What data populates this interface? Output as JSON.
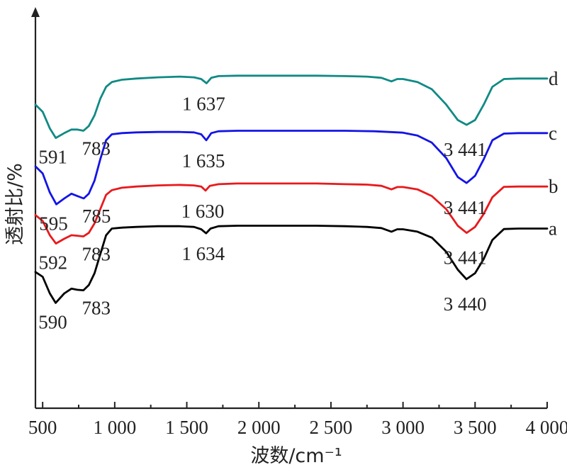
{
  "chart_data": {
    "type": "line",
    "xlabel": "波数/cm⁻¹",
    "ylabel": "透射比/%",
    "xlim": [
      450,
      4000
    ],
    "x_ticks": [
      500,
      1000,
      1500,
      2000,
      2500,
      3000,
      3500,
      4000
    ],
    "x_tick_labels": [
      "500",
      "1 000",
      "1 500",
      "2 000",
      "2 500",
      "3 000",
      "3 500",
      "4 000"
    ],
    "grid": false,
    "colors": {
      "a": "#000000",
      "b": "#e8191c",
      "c": "#1414e6",
      "d": "#108a84"
    },
    "series": [
      {
        "name": "a",
        "x": [
          450,
          500,
          550,
          590,
          650,
          700,
          740,
          783,
          820,
          860,
          900,
          940,
          980,
          1050,
          1150,
          1300,
          1450,
          1550,
          1600,
          1634,
          1665,
          1720,
          1850,
          2000,
          2200,
          2400,
          2600,
          2750,
          2850,
          2920,
          2960,
          3000,
          3100,
          3200,
          3300,
          3380,
          3440,
          3500,
          3560,
          3620,
          3700,
          3800,
          3900,
          4000
        ],
        "y": [
          70.5,
          68.5,
          61.5,
          57.5,
          61.5,
          63.5,
          63.0,
          62.8,
          65.0,
          70.0,
          78.0,
          86.0,
          88.8,
          89.2,
          89.5,
          89.8,
          89.8,
          89.5,
          88.5,
          86.8,
          88.8,
          89.8,
          90.0,
          90.0,
          90.0,
          90.0,
          89.8,
          89.5,
          89.0,
          87.5,
          88.5,
          88.5,
          87.5,
          85.0,
          79.0,
          71.5,
          67.5,
          70.0,
          76.0,
          84.0,
          88.6,
          88.8,
          88.8,
          88.8
        ]
      },
      {
        "name": "b",
        "x": [
          450,
          500,
          550,
          592,
          650,
          700,
          740,
          783,
          820,
          860,
          900,
          940,
          980,
          1050,
          1150,
          1300,
          1450,
          1550,
          1600,
          1630,
          1660,
          1720,
          1850,
          2000,
          2200,
          2400,
          2600,
          2750,
          2850,
          2920,
          2960,
          3000,
          3100,
          3200,
          3300,
          3380,
          3441,
          3500,
          3560,
          3620,
          3700,
          3800,
          3900,
          4000
        ],
        "y": [
          94.5,
          92.0,
          86.0,
          82.5,
          84.5,
          86.0,
          85.8,
          85.5,
          87.0,
          91.0,
          97.0,
          103.0,
          105.0,
          106.0,
          106.5,
          107.0,
          107.2,
          107.0,
          106.5,
          104.8,
          106.8,
          107.5,
          107.8,
          107.8,
          107.8,
          107.8,
          107.5,
          107.3,
          106.8,
          105.3,
          106.3,
          106.3,
          105.3,
          102.5,
          97.0,
          90.0,
          87.0,
          89.5,
          95.0,
          102.0,
          106.4,
          106.5,
          106.5,
          106.5
        ]
      },
      {
        "name": "c",
        "x": [
          450,
          500,
          550,
          595,
          650,
          700,
          740,
          785,
          820,
          860,
          900,
          940,
          980,
          1050,
          1150,
          1300,
          1450,
          1550,
          1600,
          1635,
          1670,
          1720,
          1850,
          2000,
          2200,
          2400,
          2600,
          2800,
          2900,
          3000,
          3100,
          3200,
          3300,
          3380,
          3441,
          3500,
          3560,
          3620,
          3700,
          3800,
          3900,
          4000
        ],
        "y": [
          115.0,
          112.0,
          104.0,
          99.0,
          101.5,
          103.5,
          102.5,
          101.5,
          103.5,
          109.0,
          118.0,
          126.0,
          128.5,
          129.0,
          129.3,
          129.5,
          129.5,
          129.3,
          128.5,
          126.0,
          129.0,
          129.8,
          130.0,
          130.0,
          130.0,
          130.0,
          130.0,
          129.8,
          129.5,
          129.2,
          128.0,
          125.0,
          118.5,
          110.5,
          108.0,
          111.0,
          118.0,
          126.0,
          128.8,
          129.0,
          129.0,
          129.0
        ]
      },
      {
        "name": "d",
        "x": [
          450,
          500,
          550,
          591,
          650,
          700,
          740,
          783,
          820,
          860,
          900,
          940,
          980,
          1050,
          1150,
          1300,
          1450,
          1550,
          1600,
          1637,
          1670,
          1720,
          1850,
          2000,
          2200,
          2400,
          2600,
          2750,
          2850,
          2920,
          2960,
          3000,
          3100,
          3200,
          3300,
          3380,
          3441,
          3500,
          3560,
          3620,
          3700,
          3800,
          3900,
          4000
        ],
        "y": [
          141.0,
          138.0,
          131.0,
          127.0,
          129.0,
          130.5,
          130.5,
          130.0,
          132.0,
          136.5,
          143.5,
          148.5,
          150.5,
          151.5,
          152.0,
          152.5,
          152.8,
          152.5,
          151.8,
          150.0,
          152.3,
          153.0,
          153.2,
          153.2,
          153.2,
          153.2,
          153.0,
          152.8,
          152.3,
          150.8,
          151.8,
          151.8,
          150.5,
          147.5,
          141.0,
          134.5,
          132.5,
          134.5,
          141.0,
          148.5,
          151.8,
          152.0,
          152.0,
          152.0
        ]
      }
    ],
    "annotations": [
      {
        "series": "a",
        "text": "590",
        "x": 590
      },
      {
        "series": "a",
        "text": "783",
        "x": 783
      },
      {
        "series": "a",
        "text": "1 634",
        "x": 1634
      },
      {
        "series": "a",
        "text": "3 440",
        "x": 3440
      },
      {
        "series": "b",
        "text": "592",
        "x": 592
      },
      {
        "series": "b",
        "text": "783",
        "x": 783
      },
      {
        "series": "b",
        "text": "1 630",
        "x": 1630
      },
      {
        "series": "b",
        "text": "3 441",
        "x": 3441
      },
      {
        "series": "c",
        "text": "595",
        "x": 595
      },
      {
        "series": "c",
        "text": "785",
        "x": 785
      },
      {
        "series": "c",
        "text": "1 635",
        "x": 1635
      },
      {
        "series": "c",
        "text": "3 441",
        "x": 3441
      },
      {
        "series": "d",
        "text": "591",
        "x": 591
      },
      {
        "series": "d",
        "text": "783",
        "x": 783
      },
      {
        "series": "d",
        "text": "1 637",
        "x": 1637
      },
      {
        "series": "d",
        "text": "3 441",
        "x": 3441
      }
    ]
  }
}
